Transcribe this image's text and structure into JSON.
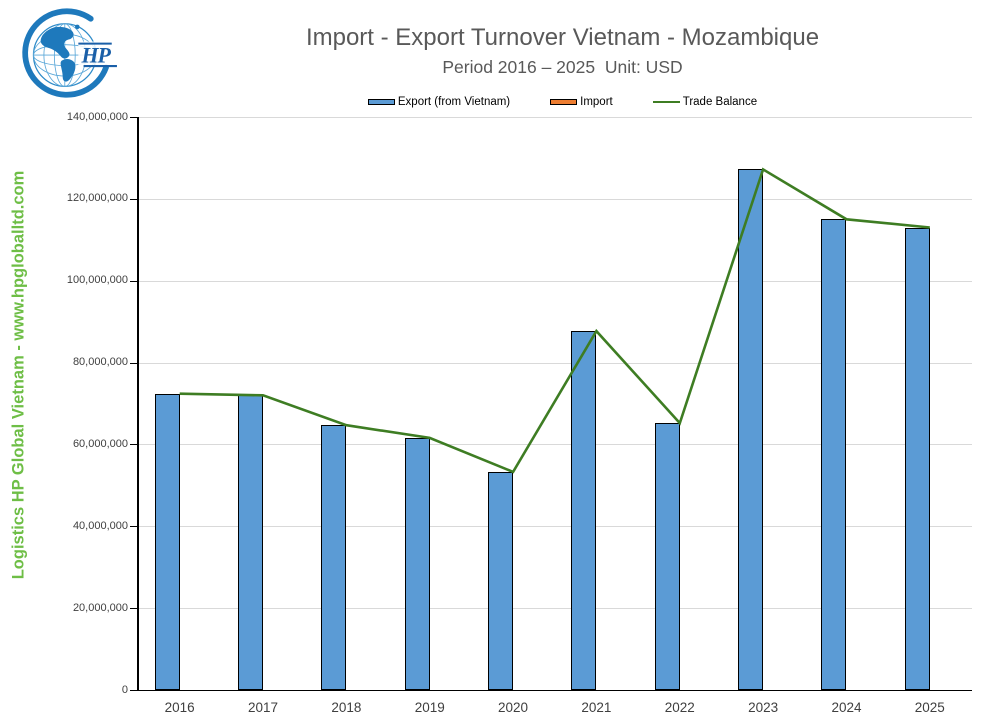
{
  "header": {
    "title": "Import - Export Turnover Vietnam - Mozambique",
    "subtitle": "Period 2016 – 2025  Unit: USD"
  },
  "watermark": "Logistics HP Global Vietnam - www.hpgloballtd.com",
  "logo": {
    "monogram": "HP"
  },
  "colors": {
    "export_bar": "#5b9bd5",
    "import_bar": "#ed7d31",
    "trade_balance_line": "#3e7d23",
    "title_text": "#595959",
    "watermark_text": "#6ebe46",
    "gridline": "#d9d9d9",
    "axis_line": "#000000",
    "axis_label": "#3f3f3f",
    "logo_blue": "#1e79bc"
  },
  "chart_data": {
    "type": "bar",
    "subtype": "combo bar + line",
    "title": "Import - Export Turnover Vietnam - Mozambique",
    "subtitle": "Period 2016 – 2025  Unit: USD",
    "unit": "USD",
    "categories": [
      "2016",
      "2017",
      "2018",
      "2019",
      "2020",
      "2021",
      "2022",
      "2023",
      "2024",
      "2025"
    ],
    "series": [
      {
        "name": "Export (from Vietnam)",
        "type": "bar",
        "color": "#5b9bd5",
        "values": [
          72400000,
          72000000,
          64700000,
          61600000,
          53300000,
          87700000,
          65200000,
          127200000,
          115000000,
          113000000
        ]
      },
      {
        "name": "Import",
        "type": "bar",
        "color": "#ed7d31",
        "values": [
          0,
          0,
          0,
          0,
          0,
          0,
          0,
          0,
          0,
          0
        ]
      },
      {
        "name": "Trade Balance",
        "type": "line",
        "color": "#3e7d23",
        "values": [
          72400000,
          72000000,
          64700000,
          61600000,
          53300000,
          87700000,
          65200000,
          127200000,
          115000000,
          113000000
        ]
      }
    ],
    "ylim": [
      0,
      140000000
    ],
    "y_tick_step": 20000000,
    "y_tick_labels": [
      "0",
      "20,000,000",
      "40,000,000",
      "60,000,000",
      "80,000,000",
      "100,000,000",
      "120,000,000",
      "140,000,000"
    ],
    "grid": true,
    "legend_position": "top"
  }
}
